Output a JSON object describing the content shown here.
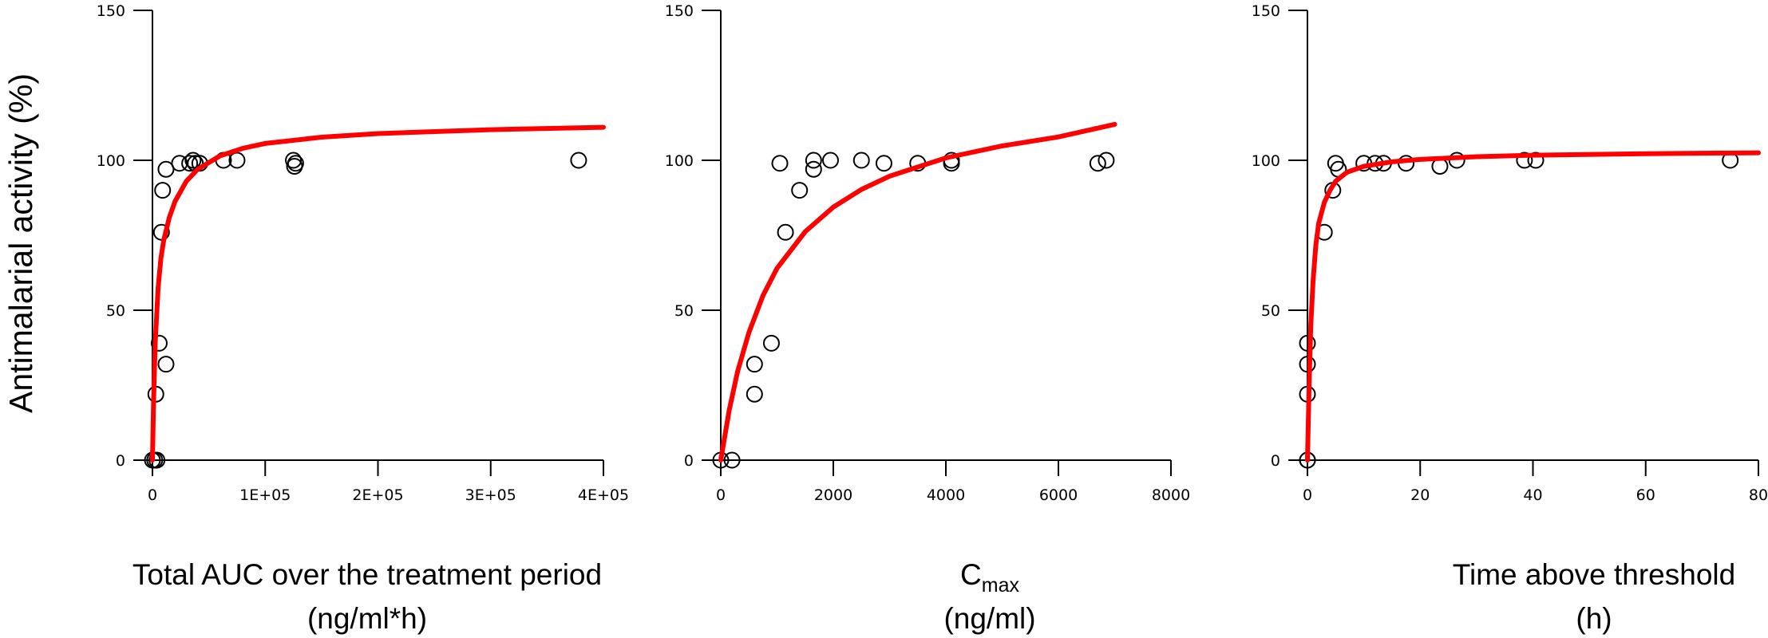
{
  "ylabel": "Antimalarial activity (%)",
  "colors": {
    "fit": "#ff0000",
    "points": "#000000",
    "axes": "#000000"
  },
  "chart_data": [
    {
      "type": "scatter",
      "title": "",
      "xlabel_lines": [
        "Total AUC over the treatment period",
        "(ng/ml*h)"
      ],
      "ylabel": "Antimalarial activity (%)",
      "xlim": [
        0,
        400000
      ],
      "ylim": [
        0,
        150
      ],
      "xticks": [
        0,
        100000,
        200000,
        300000,
        400000
      ],
      "xtick_labels": [
        "0",
        "1E+05",
        "2E+05",
        "3E+05",
        "4E+05"
      ],
      "yticks": [
        0,
        50,
        100,
        150
      ],
      "ytick_labels": [
        "0",
        "50",
        "100",
        "150"
      ],
      "grid": false,
      "points": [
        {
          "x": 0,
          "y": 0
        },
        {
          "x": 2000,
          "y": 0
        },
        {
          "x": 4000,
          "y": 0
        },
        {
          "x": 3000,
          "y": 22
        },
        {
          "x": 6000,
          "y": 39
        },
        {
          "x": 12000,
          "y": 32
        },
        {
          "x": 8000,
          "y": 76
        },
        {
          "x": 9000,
          "y": 90
        },
        {
          "x": 12000,
          "y": 97
        },
        {
          "x": 24000,
          "y": 99
        },
        {
          "x": 33000,
          "y": 99
        },
        {
          "x": 36000,
          "y": 100
        },
        {
          "x": 38000,
          "y": 99
        },
        {
          "x": 42000,
          "y": 99
        },
        {
          "x": 63000,
          "y": 100
        },
        {
          "x": 75000,
          "y": 100
        },
        {
          "x": 125000,
          "y": 100
        },
        {
          "x": 126000,
          "y": 98
        },
        {
          "x": 127000,
          "y": 99
        },
        {
          "x": 378000,
          "y": 100
        }
      ],
      "fit_curve": [
        [
          0,
          0
        ],
        [
          1000,
          19.7
        ],
        [
          2500,
          39.3
        ],
        [
          5000,
          57.5
        ],
        [
          7500,
          67.4
        ],
        [
          10000,
          73.3
        ],
        [
          15000,
          81.0
        ],
        [
          20000,
          86.3
        ],
        [
          30000,
          93.0
        ],
        [
          40000,
          97.0
        ],
        [
          60000,
          101.5
        ],
        [
          80000,
          104.0
        ],
        [
          100000,
          105.6
        ],
        [
          150000,
          107.7
        ],
        [
          200000,
          108.9
        ],
        [
          300000,
          110.2
        ],
        [
          400000,
          111.0
        ]
      ]
    },
    {
      "type": "scatter",
      "title": "",
      "xlabel_main": "C",
      "xlabel_sub": "max",
      "xlabel_line2": "(ng/ml)",
      "ylabel": "Antimalarial activity (%)",
      "xlim": [
        0,
        8000
      ],
      "ylim": [
        0,
        150
      ],
      "xticks": [
        0,
        2000,
        4000,
        6000,
        8000
      ],
      "xtick_labels": [
        "0",
        "2000",
        "4000",
        "6000",
        "8000"
      ],
      "yticks": [
        0,
        50,
        100,
        150
      ],
      "ytick_labels": [
        "0",
        "50",
        "100",
        "150"
      ],
      "grid": false,
      "points": [
        {
          "x": 0,
          "y": 0
        },
        {
          "x": 200,
          "y": 0
        },
        {
          "x": 600,
          "y": 22
        },
        {
          "x": 600,
          "y": 32
        },
        {
          "x": 900,
          "y": 39
        },
        {
          "x": 1150,
          "y": 76
        },
        {
          "x": 1400,
          "y": 90
        },
        {
          "x": 1050,
          "y": 99
        },
        {
          "x": 1650,
          "y": 97
        },
        {
          "x": 1650,
          "y": 100
        },
        {
          "x": 1950,
          "y": 100
        },
        {
          "x": 2500,
          "y": 100
        },
        {
          "x": 2900,
          "y": 99
        },
        {
          "x": 3500,
          "y": 99
        },
        {
          "x": 4100,
          "y": 100
        },
        {
          "x": 4100,
          "y": 99
        },
        {
          "x": 6700,
          "y": 99
        },
        {
          "x": 6850,
          "y": 100
        }
      ],
      "fit_curve": [
        [
          0,
          0
        ],
        [
          150,
          16.7
        ],
        [
          300,
          29.6
        ],
        [
          500,
          42.6
        ],
        [
          750,
          54.9
        ],
        [
          1000,
          64.0
        ],
        [
          1500,
          76.2
        ],
        [
          2000,
          84.4
        ],
        [
          2500,
          90.3
        ],
        [
          3000,
          94.7
        ],
        [
          4000,
          100.8
        ],
        [
          5000,
          104.8
        ],
        [
          6000,
          107.8
        ],
        [
          7000,
          112.0
        ]
      ]
    },
    {
      "type": "scatter",
      "title": "",
      "xlabel_lines": [
        "Time above threshold",
        "(h)"
      ],
      "ylabel": "Antimalarial activity (%)",
      "xlim": [
        0,
        80
      ],
      "ylim": [
        0,
        150
      ],
      "xticks": [
        0,
        20,
        40,
        60,
        80
      ],
      "xtick_labels": [
        "0",
        "20",
        "40",
        "60",
        "80"
      ],
      "yticks": [
        0,
        50,
        100,
        150
      ],
      "ytick_labels": [
        "0",
        "50",
        "100",
        "150"
      ],
      "grid": false,
      "points": [
        {
          "x": 0,
          "y": 0
        },
        {
          "x": 0,
          "y": 0
        },
        {
          "x": 0,
          "y": 22
        },
        {
          "x": 0,
          "y": 32
        },
        {
          "x": 0,
          "y": 39
        },
        {
          "x": 3,
          "y": 76
        },
        {
          "x": 4.5,
          "y": 90
        },
        {
          "x": 5,
          "y": 99
        },
        {
          "x": 5.5,
          "y": 97
        },
        {
          "x": 10,
          "y": 99
        },
        {
          "x": 12,
          "y": 99
        },
        {
          "x": 13.5,
          "y": 99
        },
        {
          "x": 17.5,
          "y": 99
        },
        {
          "x": 23.5,
          "y": 98
        },
        {
          "x": 26.5,
          "y": 100
        },
        {
          "x": 38.5,
          "y": 100
        },
        {
          "x": 40.5,
          "y": 100
        },
        {
          "x": 75,
          "y": 100
        }
      ],
      "fit_curve": [
        [
          0,
          0
        ],
        [
          0.3,
          25
        ],
        [
          0.6,
          45
        ],
        [
          1,
          60
        ],
        [
          1.5,
          72
        ],
        [
          2,
          79
        ],
        [
          3,
          86
        ],
        [
          4,
          90
        ],
        [
          5,
          93
        ],
        [
          7,
          96
        ],
        [
          10,
          98
        ],
        [
          15,
          99.5
        ],
        [
          20,
          100.3
        ],
        [
          30,
          101.2
        ],
        [
          40,
          101.7
        ],
        [
          60,
          102.2
        ],
        [
          80,
          102.5
        ]
      ]
    }
  ]
}
